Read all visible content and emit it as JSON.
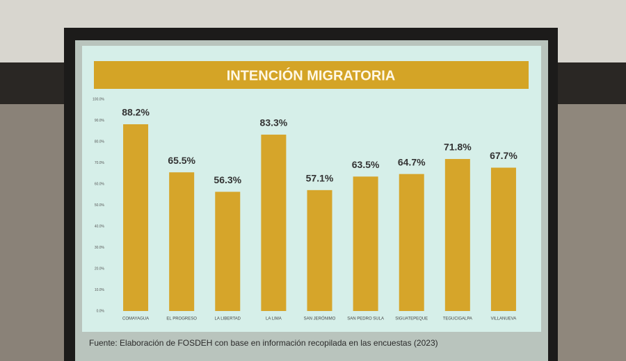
{
  "chart_data": {
    "type": "bar",
    "title": "INTENCIÓN MIGRATORIA",
    "categories": [
      "COMAYAGUA",
      "EL PROGRESO",
      "LA LIBERTAD",
      "LA LIMA",
      "SAN JERÓNIMO",
      "SAN PEDRO SULA",
      "SIGUATEPEQUE",
      "TEGUCIGALPA",
      "VILLANUEVA"
    ],
    "values": [
      88.2,
      65.5,
      56.3,
      83.3,
      57.1,
      63.5,
      64.7,
      71.8,
      67.7
    ],
    "value_labels": [
      "88.2%",
      "65.5%",
      "56.3%",
      "83.3%",
      "57.1%",
      "63.5%",
      "64.7%",
      "71.8%",
      "67.7%"
    ],
    "color": "#d6a52a",
    "ylim": [
      0,
      100
    ],
    "yticks": [
      {
        "value": 0,
        "label": "0.0%"
      },
      {
        "value": 10,
        "label": "10.0%"
      },
      {
        "value": 20,
        "label": "20.0%"
      },
      {
        "value": 30,
        "label": "30.0%"
      },
      {
        "value": 40,
        "label": "40.0%"
      },
      {
        "value": 50,
        "label": "50.0%"
      },
      {
        "value": 60,
        "label": "60.0%"
      },
      {
        "value": 70,
        "label": "70.0%"
      },
      {
        "value": 80,
        "label": "80.0%"
      },
      {
        "value": 90,
        "label": "90.0%"
      },
      {
        "value": 100,
        "label": "100.0%"
      }
    ],
    "source": "Fuente: Elaboración de FOSDEH con base en información recopilada en las encuestas (2023)"
  }
}
